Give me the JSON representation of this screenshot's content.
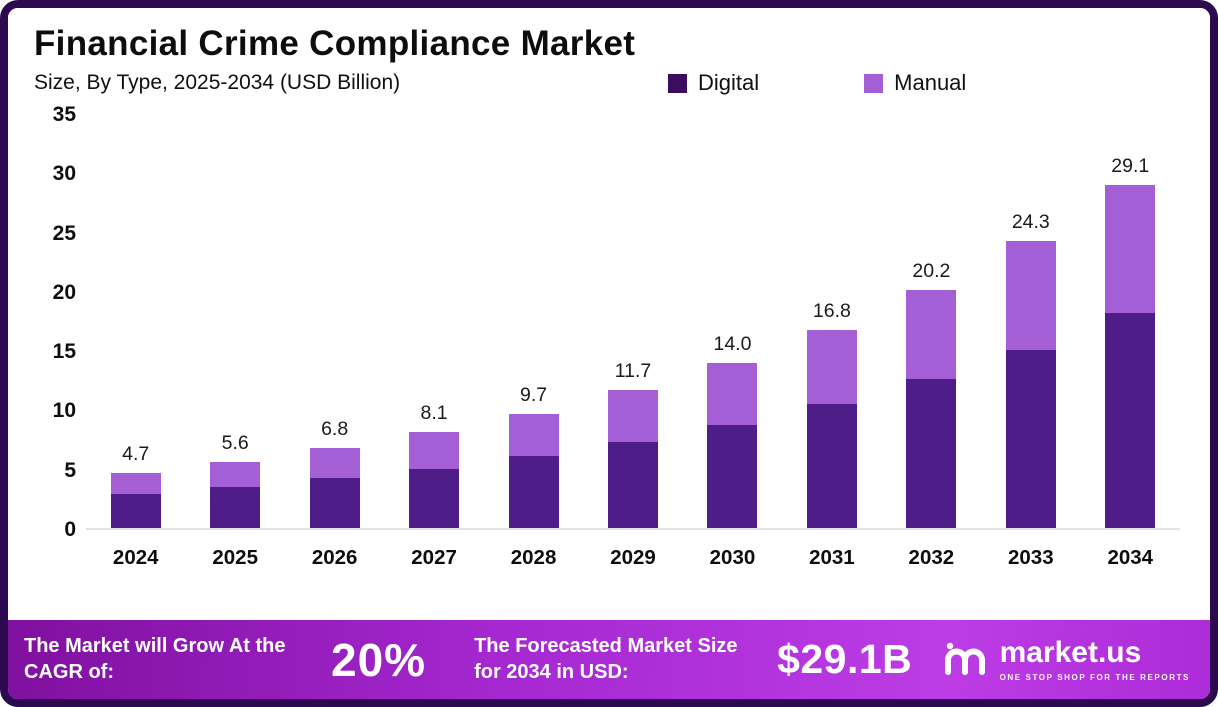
{
  "header": {
    "title": "Financial Crime Compliance Market",
    "subtitle": "Size, By Type, 2025-2034 (USD Billion)"
  },
  "legend": [
    {
      "label": "Digital",
      "color": "#3a0d61"
    },
    {
      "label": "Manual",
      "color": "#a55fd6"
    }
  ],
  "chart_data": {
    "type": "bar",
    "stacked": true,
    "title": "Financial Crime Compliance Market",
    "subtitle": "Size, By Type, 2025-2034 (USD Billion)",
    "unit": "USD Billion",
    "categories": [
      "2024",
      "2025",
      "2026",
      "2027",
      "2028",
      "2029",
      "2030",
      "2031",
      "2032",
      "2033",
      "2034"
    ],
    "series": [
      {
        "name": "Digital",
        "color": "#4e1d87",
        "values": [
          2.9,
          3.5,
          4.2,
          5.0,
          6.1,
          7.3,
          8.7,
          10.5,
          12.6,
          15.1,
          18.2
        ]
      },
      {
        "name": "Manual",
        "color": "#a55fd6",
        "values": [
          1.8,
          2.1,
          2.6,
          3.1,
          3.6,
          4.4,
          5.3,
          6.3,
          7.6,
          9.2,
          10.9
        ]
      }
    ],
    "totals": [
      "4.7",
      "5.6",
      "6.8",
      "8.1",
      "9.7",
      "11.7",
      "14.0",
      "16.8",
      "20.2",
      "24.3",
      "29.1"
    ],
    "ylim": [
      0,
      35
    ],
    "yticks": [
      0,
      5,
      10,
      15,
      20,
      25,
      30,
      35
    ],
    "grid": false,
    "legend_position": "top"
  },
  "banner": {
    "cagr_label": "The Market will Grow At the CAGR of:",
    "cagr_value": "20%",
    "forecast_label": "The Forecasted Market Size for 2034 in USD:",
    "forecast_value": "$29.1B",
    "brand": "market.us",
    "brand_tagline": "ONE STOP SHOP FOR THE REPORTS"
  }
}
